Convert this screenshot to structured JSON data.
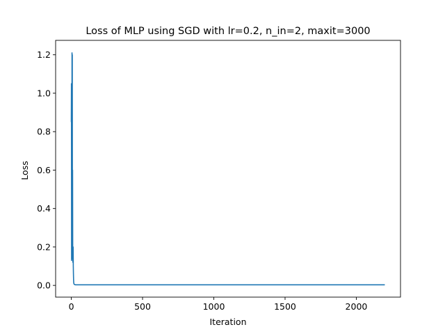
{
  "chart_data": {
    "type": "line",
    "title": "Loss of MLP using SGD with lr=0.2, n_in=2, maxit=3000",
    "xlabel": "Iteration",
    "ylabel": "Loss",
    "xlim": [
      -110,
      2310
    ],
    "ylim": [
      -0.061,
      1.275
    ],
    "xticks": [
      0,
      500,
      1000,
      1500,
      2000
    ],
    "yticks": [
      0.0,
      0.2,
      0.4,
      0.6,
      0.8,
      1.0,
      1.2
    ],
    "xtick_labels": [
      "0",
      "500",
      "1000",
      "1500",
      "2000"
    ],
    "ytick_labels": [
      "0.0",
      "0.2",
      "0.4",
      "0.6",
      "0.8",
      "1.0",
      "1.2"
    ],
    "grid": false,
    "legend": "none",
    "series": [
      {
        "color": "#1f77b4",
        "x": [
          0,
          1,
          2,
          3,
          4,
          5,
          6,
          7,
          8,
          9,
          10,
          11,
          12,
          13,
          14,
          15,
          16,
          17,
          18,
          20,
          25,
          30,
          40,
          60,
          100,
          200,
          500,
          1000,
          1500,
          2000,
          2200
        ],
        "y": [
          0.85,
          1.05,
          0.13,
          0.95,
          0.4,
          1.21,
          0.25,
          1.2,
          0.14,
          0.6,
          0.17,
          0.12,
          0.14,
          0.2,
          0.1,
          0.06,
          0.03,
          0.015,
          0.01,
          0.006,
          0.004,
          0.003,
          0.003,
          0.003,
          0.003,
          0.003,
          0.003,
          0.003,
          0.003,
          0.003,
          0.003
        ]
      }
    ]
  }
}
